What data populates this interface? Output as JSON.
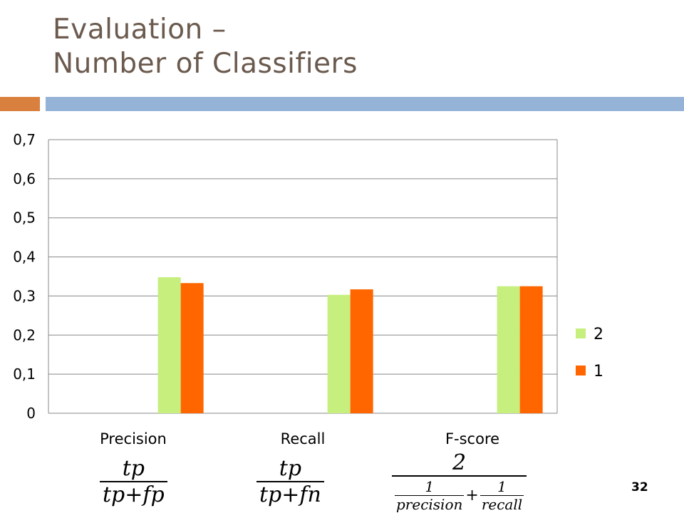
{
  "slide": {
    "title_line1": "Evaluation –",
    "title_line2": "Number of Classifiers",
    "page_number": "32",
    "accent_color": "#d9803f",
    "rule_color": "#95b3d7",
    "title_color": "#6b5a4e"
  },
  "chart_data": {
    "type": "bar",
    "title": "",
    "xlabel": "",
    "ylabel": "",
    "categories": [
      "Precision",
      "Recall",
      "F-score"
    ],
    "series": [
      {
        "name": "2",
        "values": [
          0.348,
          0.303,
          0.325
        ],
        "color": "#c6ef7e"
      },
      {
        "name": "1",
        "values": [
          0.333,
          0.317,
          0.325
        ],
        "color": "#ff6600"
      }
    ],
    "ylim": [
      0,
      0.7
    ],
    "yticks": [
      0,
      0.1,
      0.2,
      0.3,
      0.4,
      0.5,
      0.6,
      0.7
    ],
    "ytick_labels": [
      "0",
      "0,1",
      "0,2",
      "0,3",
      "0,4",
      "0,5",
      "0,6",
      "0,7"
    ],
    "grid": true,
    "legend_position": "right"
  },
  "formulas": {
    "precision": {
      "num": "tp",
      "den": "tp+fp"
    },
    "recall": {
      "num": "tp",
      "den": "tp+fn"
    },
    "fscore": {
      "num": "2",
      "den_a_num": "1",
      "den_a_den": "precision",
      "plus": "+",
      "den_b_num": "1",
      "den_b_den": "recall"
    }
  }
}
